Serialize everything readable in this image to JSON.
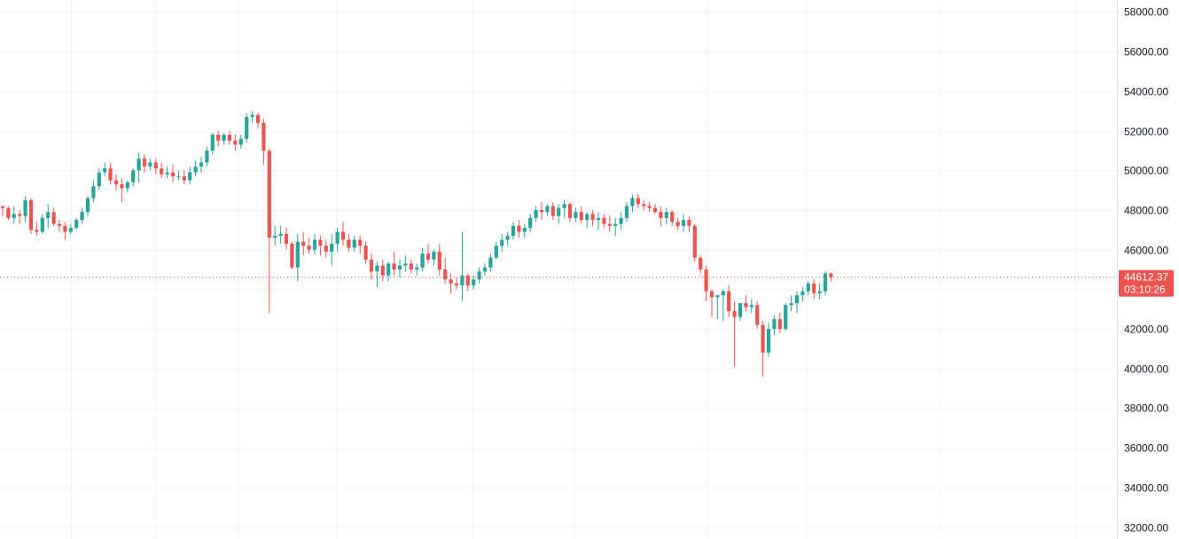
{
  "chart_data": {
    "type": "candlestick",
    "title": "",
    "xlabel": "",
    "ylabel": "",
    "ylim": [
      31400,
      58600
    ],
    "y_ticks": [
      58000,
      56000,
      54000,
      52000,
      50000,
      48000,
      46000,
      44000,
      42000,
      40000,
      38000,
      36000,
      34000,
      32000
    ],
    "y_tick_labels": [
      "58000.00",
      "56000.00",
      "54000.00",
      "52000.00",
      "50000.00",
      "48000.00",
      "46000.00",
      "44000.00",
      "42000.00",
      "40000.00",
      "38000.00",
      "36000.00",
      "34000.00",
      "32000.00"
    ],
    "grid": true,
    "up_color": "#26a69a",
    "down_color": "#ef5350",
    "last_price": 44612.37,
    "last_price_label": "44612.37",
    "countdown_label": "03:10:26",
    "candles": [
      [
        48200,
        48200,
        47700,
        48100
      ],
      [
        48100,
        48200,
        47500,
        47600
      ],
      [
        47600,
        48200,
        47300,
        47800
      ],
      [
        47800,
        48000,
        47300,
        47700
      ],
      [
        47700,
        48700,
        47400,
        48500
      ],
      [
        48500,
        48600,
        46800,
        47000
      ],
      [
        47000,
        47400,
        46700,
        46900
      ],
      [
        46900,
        47800,
        46800,
        47600
      ],
      [
        47600,
        48300,
        47100,
        47900
      ],
      [
        47900,
        48100,
        47200,
        47300
      ],
      [
        47300,
        47500,
        46900,
        47200
      ],
      [
        47200,
        47400,
        46500,
        46900
      ],
      [
        46900,
        47300,
        46800,
        47100
      ],
      [
        47100,
        47600,
        47000,
        47500
      ],
      [
        47500,
        48100,
        47300,
        47900
      ],
      [
        47900,
        48700,
        47700,
        48600
      ],
      [
        48600,
        49500,
        48400,
        49200
      ],
      [
        49200,
        50100,
        49000,
        49900
      ],
      [
        49900,
        50400,
        49700,
        50100
      ],
      [
        50100,
        50400,
        49300,
        49500
      ],
      [
        49500,
        49800,
        49000,
        49300
      ],
      [
        49300,
        49600,
        48400,
        49100
      ],
      [
        49100,
        49500,
        48900,
        49400
      ],
      [
        49400,
        50100,
        49200,
        50000
      ],
      [
        50000,
        50900,
        49400,
        50600
      ],
      [
        50600,
        50800,
        49900,
        50200
      ],
      [
        50200,
        50600,
        50000,
        50400
      ],
      [
        50400,
        50600,
        49800,
        50100
      ],
      [
        50100,
        50400,
        49600,
        49800
      ],
      [
        49800,
        50200,
        49600,
        49900
      ],
      [
        49900,
        50300,
        49400,
        49700
      ],
      [
        49700,
        50000,
        49500,
        49700
      ],
      [
        49700,
        50000,
        49300,
        49500
      ],
      [
        49500,
        50200,
        49300,
        49900
      ],
      [
        49900,
        50500,
        49700,
        50200
      ],
      [
        50200,
        50700,
        49900,
        50400
      ],
      [
        50400,
        51200,
        50200,
        51000
      ],
      [
        51000,
        51900,
        50800,
        51800
      ],
      [
        51800,
        52000,
        51200,
        51500
      ],
      [
        51500,
        51900,
        51300,
        51800
      ],
      [
        51800,
        52000,
        51300,
        51500
      ],
      [
        51500,
        51800,
        51000,
        51300
      ],
      [
        51300,
        51800,
        51100,
        51600
      ],
      [
        51600,
        52900,
        51400,
        52700
      ],
      [
        52700,
        53000,
        52400,
        52800
      ],
      [
        52800,
        52900,
        52100,
        52400
      ],
      [
        52400,
        52600,
        50300,
        51000
      ],
      [
        51000,
        51100,
        42800,
        46600
      ],
      [
        46600,
        47200,
        46200,
        46700
      ],
      [
        46700,
        47200,
        46300,
        46800
      ],
      [
        46800,
        47100,
        46000,
        46300
      ],
      [
        46300,
        46400,
        45000,
        45100
      ],
      [
        45100,
        46800,
        44400,
        46400
      ],
      [
        46400,
        46900,
        45700,
        46200
      ],
      [
        46200,
        46600,
        45800,
        46000
      ],
      [
        46000,
        46800,
        45800,
        46500
      ],
      [
        46500,
        46700,
        45700,
        46200
      ],
      [
        46200,
        46500,
        45600,
        45900
      ],
      [
        45900,
        46800,
        45200,
        46300
      ],
      [
        46300,
        47100,
        45900,
        46900
      ],
      [
        46900,
        47400,
        46200,
        46500
      ],
      [
        46500,
        46800,
        45900,
        46100
      ],
      [
        46100,
        46700,
        45900,
        46500
      ],
      [
        46500,
        46700,
        45800,
        46200
      ],
      [
        46200,
        46400,
        45300,
        45500
      ],
      [
        45500,
        45800,
        44500,
        44900
      ],
      [
        44900,
        45400,
        44100,
        45200
      ],
      [
        45200,
        45500,
        44400,
        44700
      ],
      [
        44700,
        45400,
        44400,
        45300
      ],
      [
        45300,
        45900,
        44700,
        45000
      ],
      [
        45000,
        45500,
        44600,
        45200
      ],
      [
        45200,
        45700,
        44900,
        45300
      ],
      [
        45300,
        45500,
        44800,
        45000
      ],
      [
        45000,
        45300,
        44700,
        45100
      ],
      [
        45100,
        46100,
        44900,
        45800
      ],
      [
        45800,
        46300,
        45300,
        45500
      ],
      [
        45500,
        46000,
        45200,
        45900
      ],
      [
        45900,
        46300,
        44700,
        45000
      ],
      [
        45000,
        45600,
        44300,
        44500
      ],
      [
        44500,
        44800,
        43800,
        44300
      ],
      [
        44300,
        44600,
        44000,
        44200
      ],
      [
        44200,
        46900,
        43400,
        44700
      ],
      [
        44700,
        44800,
        43900,
        44200
      ],
      [
        44200,
        44700,
        44000,
        44500
      ],
      [
        44500,
        45100,
        44300,
        44900
      ],
      [
        44900,
        45300,
        44700,
        45100
      ],
      [
        45100,
        45800,
        44900,
        45600
      ],
      [
        45600,
        46400,
        45500,
        46200
      ],
      [
        46200,
        46800,
        45900,
        46500
      ],
      [
        46500,
        46900,
        46200,
        46700
      ],
      [
        46700,
        47400,
        46500,
        47200
      ],
      [
        47200,
        47500,
        46600,
        46900
      ],
      [
        46900,
        47300,
        46600,
        47100
      ],
      [
        47100,
        47800,
        46900,
        47600
      ],
      [
        47600,
        48200,
        47400,
        48000
      ],
      [
        48000,
        48400,
        47500,
        47900
      ],
      [
        47900,
        48300,
        47700,
        48200
      ],
      [
        48200,
        48400,
        47500,
        47700
      ],
      [
        47700,
        48300,
        47300,
        48100
      ],
      [
        48100,
        48500,
        47600,
        48300
      ],
      [
        48300,
        48400,
        47400,
        47600
      ],
      [
        47600,
        48100,
        47400,
        47900
      ],
      [
        47900,
        48200,
        47300,
        47500
      ],
      [
        47500,
        47900,
        47100,
        47800
      ],
      [
        47800,
        48000,
        47200,
        47500
      ],
      [
        47500,
        47900,
        47000,
        47600
      ],
      [
        47600,
        47800,
        47100,
        47300
      ],
      [
        47300,
        47700,
        46900,
        47200
      ],
      [
        47200,
        47600,
        46700,
        47300
      ],
      [
        47300,
        47900,
        47000,
        47600
      ],
      [
        47600,
        48400,
        47400,
        48200
      ],
      [
        48200,
        48800,
        47900,
        48600
      ],
      [
        48600,
        48800,
        48100,
        48300
      ],
      [
        48300,
        48500,
        48000,
        48200
      ],
      [
        48200,
        48400,
        47900,
        48100
      ],
      [
        48100,
        48300,
        47800,
        47900
      ],
      [
        47900,
        48200,
        47200,
        47600
      ],
      [
        47600,
        48100,
        47300,
        47900
      ],
      [
        47900,
        48000,
        47200,
        47400
      ],
      [
        47400,
        47600,
        47000,
        47200
      ],
      [
        47200,
        47800,
        46900,
        47500
      ],
      [
        47500,
        47700,
        46900,
        47200
      ],
      [
        47200,
        47300,
        45400,
        45600
      ],
      [
        45600,
        45700,
        44800,
        45000
      ],
      [
        45000,
        45200,
        43400,
        43900
      ],
      [
        43900,
        44000,
        42600,
        43600
      ],
      [
        43600,
        43700,
        42500,
        43700
      ],
      [
        43700,
        44000,
        42400,
        43900
      ],
      [
        43900,
        44200,
        42600,
        42900
      ],
      [
        42900,
        43400,
        40100,
        42600
      ],
      [
        42600,
        43300,
        42400,
        43300
      ],
      [
        43300,
        43700,
        42900,
        43100
      ],
      [
        43100,
        43500,
        42800,
        43200
      ],
      [
        43200,
        43400,
        42000,
        42200
      ],
      [
        42200,
        42400,
        39600,
        40800
      ],
      [
        40800,
        42300,
        40600,
        42000
      ],
      [
        42000,
        42700,
        41700,
        42500
      ],
      [
        42500,
        42800,
        41800,
        42000
      ],
      [
        42000,
        43300,
        41900,
        43200
      ],
      [
        43200,
        43700,
        42900,
        43300
      ],
      [
        43300,
        43900,
        42800,
        43700
      ],
      [
        43700,
        44100,
        43400,
        43900
      ],
      [
        43900,
        44400,
        43700,
        44300
      ],
      [
        44300,
        44500,
        43500,
        43800
      ],
      [
        43800,
        44300,
        43500,
        43900
      ],
      [
        43900,
        44900,
        43700,
        44800
      ],
      [
        44800,
        44850,
        44400,
        44612
      ]
    ]
  }
}
